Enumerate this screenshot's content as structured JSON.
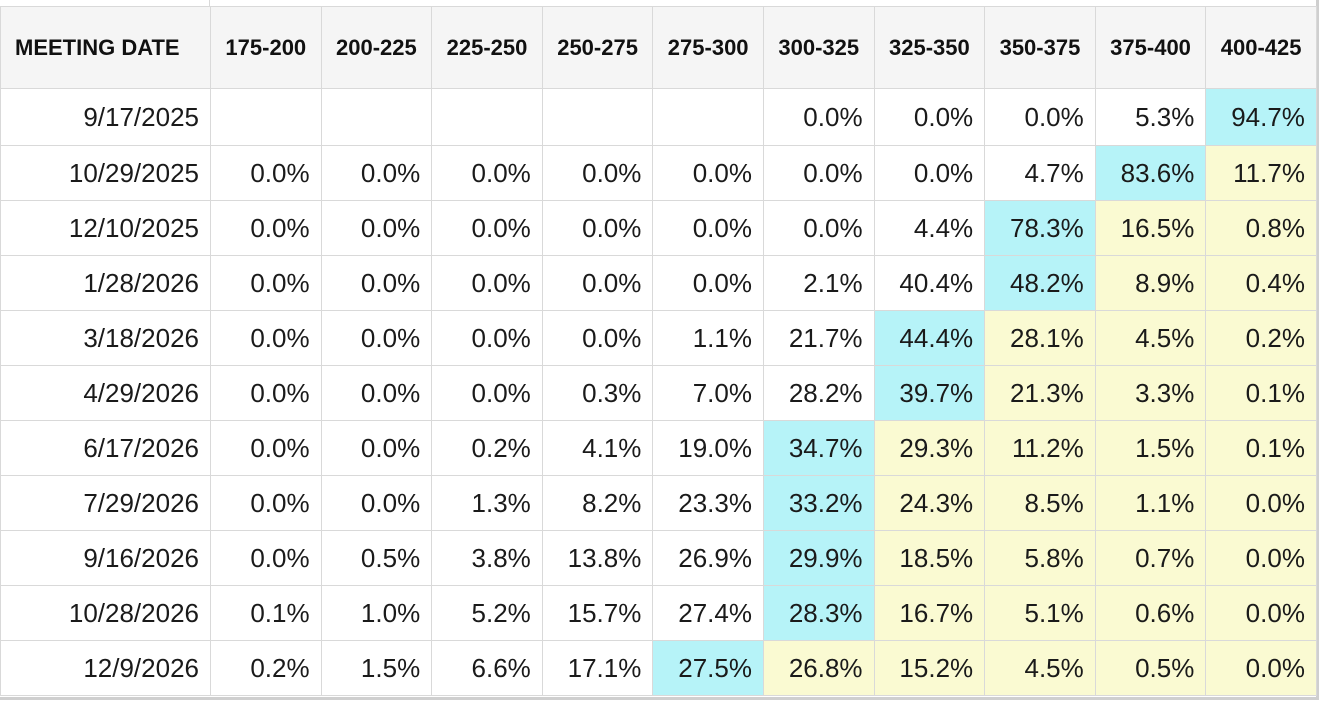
{
  "table": {
    "date_header": "MEETING DATE",
    "bins": [
      "175-200",
      "200-225",
      "225-250",
      "250-275",
      "275-300",
      "300-325",
      "325-350",
      "350-375",
      "375-400",
      "400-425"
    ],
    "colors": {
      "highest_probability": "#b6f3f8",
      "above_highest": "#fafad2",
      "header_background": "#f5f5f5",
      "grid": "#d9d9d9"
    },
    "rows": [
      {
        "date": "9/17/2025",
        "values": [
          "",
          "",
          "",
          "",
          "",
          "0.0%",
          "0.0%",
          "0.0%",
          "5.3%",
          "94.7%"
        ],
        "max_index": 9
      },
      {
        "date": "10/29/2025",
        "values": [
          "0.0%",
          "0.0%",
          "0.0%",
          "0.0%",
          "0.0%",
          "0.0%",
          "0.0%",
          "4.7%",
          "83.6%",
          "11.7%"
        ],
        "max_index": 8
      },
      {
        "date": "12/10/2025",
        "values": [
          "0.0%",
          "0.0%",
          "0.0%",
          "0.0%",
          "0.0%",
          "0.0%",
          "4.4%",
          "78.3%",
          "16.5%",
          "0.8%"
        ],
        "max_index": 7
      },
      {
        "date": "1/28/2026",
        "values": [
          "0.0%",
          "0.0%",
          "0.0%",
          "0.0%",
          "0.0%",
          "2.1%",
          "40.4%",
          "48.2%",
          "8.9%",
          "0.4%"
        ],
        "max_index": 7
      },
      {
        "date": "3/18/2026",
        "values": [
          "0.0%",
          "0.0%",
          "0.0%",
          "0.0%",
          "1.1%",
          "21.7%",
          "44.4%",
          "28.1%",
          "4.5%",
          "0.2%"
        ],
        "max_index": 6
      },
      {
        "date": "4/29/2026",
        "values": [
          "0.0%",
          "0.0%",
          "0.0%",
          "0.3%",
          "7.0%",
          "28.2%",
          "39.7%",
          "21.3%",
          "3.3%",
          "0.1%"
        ],
        "max_index": 6
      },
      {
        "date": "6/17/2026",
        "values": [
          "0.0%",
          "0.0%",
          "0.2%",
          "4.1%",
          "19.0%",
          "34.7%",
          "29.3%",
          "11.2%",
          "1.5%",
          "0.1%"
        ],
        "max_index": 5
      },
      {
        "date": "7/29/2026",
        "values": [
          "0.0%",
          "0.0%",
          "1.3%",
          "8.2%",
          "23.3%",
          "33.2%",
          "24.3%",
          "8.5%",
          "1.1%",
          "0.0%"
        ],
        "max_index": 5
      },
      {
        "date": "9/16/2026",
        "values": [
          "0.0%",
          "0.5%",
          "3.8%",
          "13.8%",
          "26.9%",
          "29.9%",
          "18.5%",
          "5.8%",
          "0.7%",
          "0.0%"
        ],
        "max_index": 5
      },
      {
        "date": "10/28/2026",
        "values": [
          "0.1%",
          "1.0%",
          "5.2%",
          "15.7%",
          "27.4%",
          "28.3%",
          "16.7%",
          "5.1%",
          "0.6%",
          "0.0%"
        ],
        "max_index": 5
      },
      {
        "date": "12/9/2026",
        "values": [
          "0.2%",
          "1.5%",
          "6.6%",
          "17.1%",
          "27.5%",
          "26.8%",
          "15.2%",
          "4.5%",
          "0.5%",
          "0.0%"
        ],
        "max_index": 4
      }
    ]
  }
}
